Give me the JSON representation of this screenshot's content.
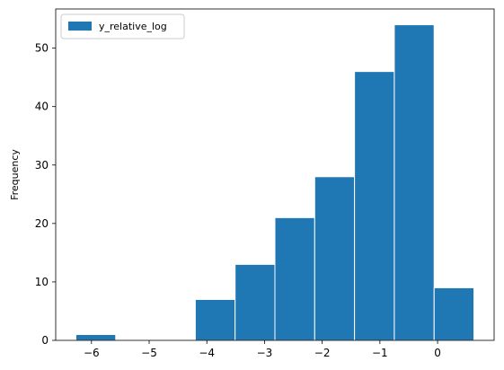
{
  "chart_data": {
    "type": "bar",
    "bins": [
      {
        "x0": -6.27,
        "x1": -5.58,
        "count": 1
      },
      {
        "x0": -5.58,
        "x1": -4.89,
        "count": 0
      },
      {
        "x0": -4.89,
        "x1": -4.2,
        "count": 0
      },
      {
        "x0": -4.2,
        "x1": -3.51,
        "count": 7
      },
      {
        "x0": -3.51,
        "x1": -2.82,
        "count": 13
      },
      {
        "x0": -2.82,
        "x1": -2.13,
        "count": 21
      },
      {
        "x0": -2.13,
        "x1": -1.44,
        "count": 28
      },
      {
        "x0": -1.44,
        "x1": -0.75,
        "count": 46
      },
      {
        "x0": -0.75,
        "x1": -0.06,
        "count": 54
      },
      {
        "x0": -0.06,
        "x1": 0.63,
        "count": 9
      }
    ],
    "series": [
      {
        "name": "y_relative_log"
      }
    ],
    "xlim": [
      -6.62,
      0.98
    ],
    "ylim": [
      0,
      56.7
    ],
    "xticks": [
      -6,
      -5,
      -4,
      -3,
      -2,
      -1,
      0
    ],
    "yticks": [
      0,
      10,
      20,
      30,
      40,
      50
    ],
    "xlabel": "",
    "ylabel": "Frequency",
    "legend_position": "top-left",
    "grid": false,
    "bar_color": "#1f77b4",
    "edge_color": "#ffffff"
  }
}
